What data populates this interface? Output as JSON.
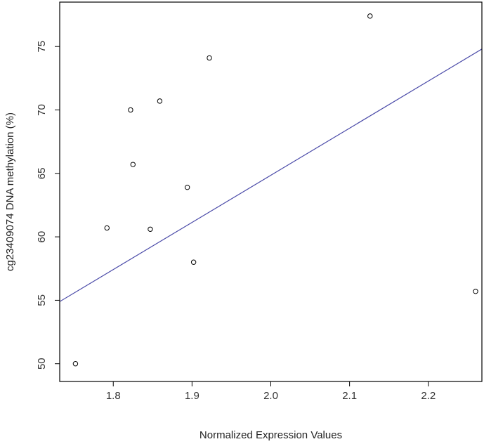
{
  "chart_data": {
    "type": "scatter",
    "title": "",
    "xlabel": "Normalized Expression Values",
    "ylabel": "cg23409074 DNA methylation (%)",
    "xlim": [
      1.732,
      2.268
    ],
    "ylim": [
      48.6,
      78.5
    ],
    "x_ticks": [
      {
        "value": 1.8,
        "label": "1.8"
      },
      {
        "value": 1.9,
        "label": "1.9"
      },
      {
        "value": 2.0,
        "label": "2.0"
      },
      {
        "value": 2.1,
        "label": "2.1"
      },
      {
        "value": 2.2,
        "label": "2.2"
      }
    ],
    "y_ticks": [
      {
        "value": 50,
        "label": "50"
      },
      {
        "value": 55,
        "label": "55"
      },
      {
        "value": 60,
        "label": "60"
      },
      {
        "value": 65,
        "label": "65"
      },
      {
        "value": 70,
        "label": "70"
      },
      {
        "value": 75,
        "label": "75"
      }
    ],
    "points": [
      {
        "x": 1.752,
        "y": 50.0
      },
      {
        "x": 1.792,
        "y": 60.7
      },
      {
        "x": 1.822,
        "y": 70.0
      },
      {
        "x": 1.825,
        "y": 65.7
      },
      {
        "x": 1.847,
        "y": 60.6
      },
      {
        "x": 1.859,
        "y": 70.7
      },
      {
        "x": 1.894,
        "y": 63.9
      },
      {
        "x": 1.902,
        "y": 58.0
      },
      {
        "x": 1.922,
        "y": 74.1
      },
      {
        "x": 2.126,
        "y": 77.4
      },
      {
        "x": 2.26,
        "y": 55.7
      }
    ],
    "regression_line": {
      "intercept": -9.43,
      "slope": 37.14
    },
    "grid": false,
    "legend": "none",
    "colors": {
      "points": "#000000",
      "line": "#4a4aa8",
      "axes": "#000000"
    }
  }
}
